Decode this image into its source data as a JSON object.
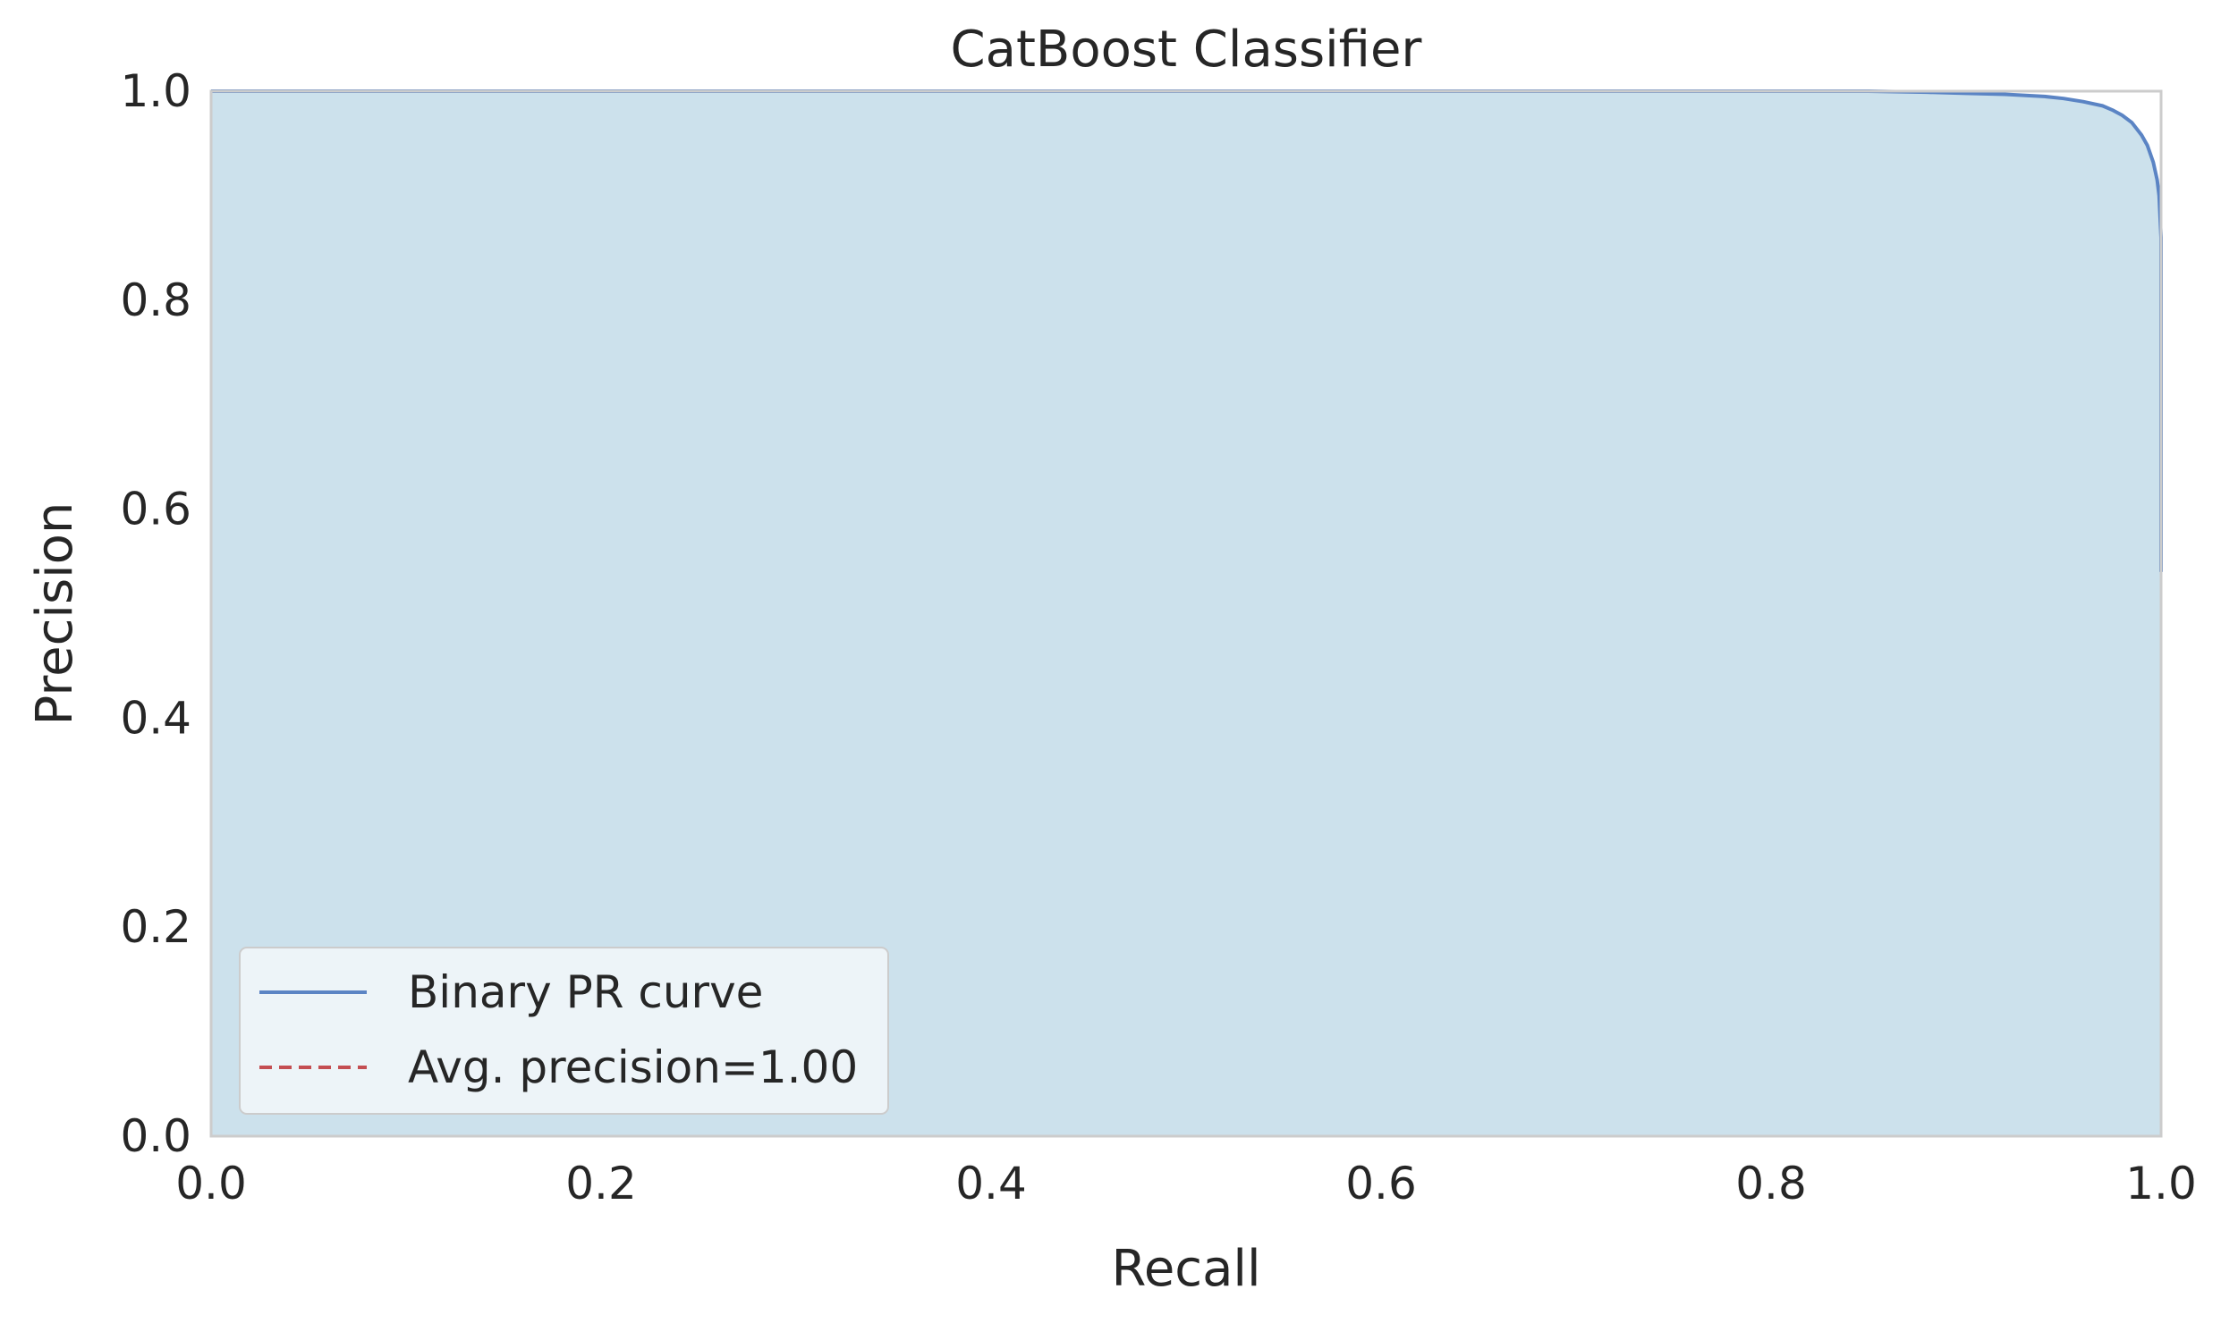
{
  "chart_data": {
    "type": "area",
    "title": "CatBoost Classifier",
    "xlabel": "Recall",
    "ylabel": "Precision",
    "xlim": [
      0.0,
      1.0
    ],
    "ylim": [
      0.0,
      1.0
    ],
    "xticks": [
      "0.0",
      "0.2",
      "0.4",
      "0.6",
      "0.8",
      "1.0"
    ],
    "yticks": [
      "0.0",
      "0.2",
      "0.4",
      "0.6",
      "0.8",
      "1.0"
    ],
    "grid": false,
    "legend_position": "lower-left",
    "series": [
      {
        "name": "Binary PR curve",
        "style": "solid",
        "color": "#5b84c4",
        "fill_color": "#cce1ec",
        "x": [
          0.0,
          0.5,
          0.85,
          0.88,
          0.9,
          0.92,
          0.94,
          0.95,
          0.96,
          0.97,
          0.975,
          0.98,
          0.985,
          0.99,
          0.993,
          0.996,
          0.998,
          0.999,
          1.0,
          1.0,
          1.0
        ],
        "y": [
          1.0,
          1.0,
          1.0,
          0.999,
          0.998,
          0.997,
          0.995,
          0.993,
          0.99,
          0.986,
          0.982,
          0.977,
          0.97,
          0.958,
          0.948,
          0.932,
          0.915,
          0.9,
          0.86,
          0.7,
          0.54
        ]
      },
      {
        "name": "Avg. precision=1.00",
        "style": "dashed",
        "color": "#c44e52",
        "x": [
          0.0,
          1.0
        ],
        "y": [
          1.0,
          1.0
        ]
      }
    ]
  },
  "colors": {
    "axes_edge": "#cccccc",
    "text": "#262626",
    "legend_bg": "#f2f7fa"
  }
}
